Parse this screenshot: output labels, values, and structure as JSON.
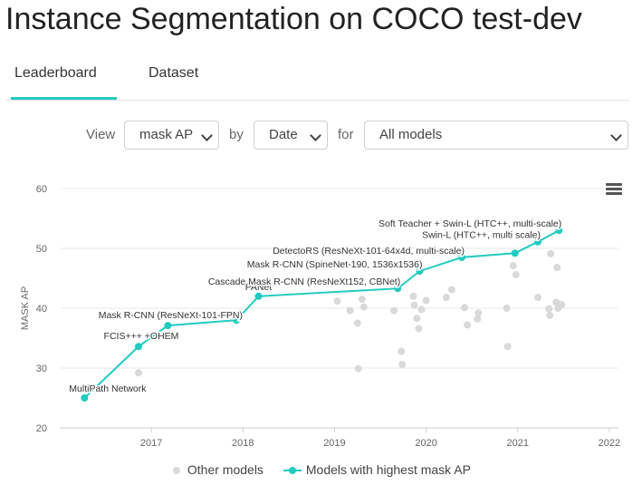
{
  "page": {
    "title": "Instance Segmentation on COCO test-dev"
  },
  "tabs": [
    {
      "label": "Leaderboard",
      "active": true
    },
    {
      "label": "Dataset",
      "active": false
    }
  ],
  "controls": {
    "view_label": "View",
    "view_value": "mask AP",
    "by_label": "by",
    "by_value": "Date",
    "for_label": "for",
    "for_value": "All models"
  },
  "chart_data": {
    "type": "scatter",
    "ylabel": "MASK AP",
    "xlabel": "",
    "ylim": [
      20,
      60
    ],
    "xlim": [
      2016.0,
      2022.1
    ],
    "yticks": [
      "20",
      "30",
      "40",
      "50",
      "60"
    ],
    "xticks": [
      "2017",
      "2018",
      "2019",
      "2020",
      "2021",
      "2022"
    ],
    "grid": true,
    "accent_color": "#21cbc0",
    "other_color": "#d9d9d9",
    "legend": {
      "position": "bottom",
      "other_label": "Other models",
      "best_label": "Models with highest mask AP"
    },
    "series": [
      {
        "name": "Models with highest mask AP",
        "points": [
          {
            "x": 2016.27,
            "y": 25.0,
            "label": "MultiPath Network"
          },
          {
            "x": 2016.86,
            "y": 33.6,
            "label": "FCIS+++ +OHEM"
          },
          {
            "x": 2017.18,
            "y": 37.1,
            "label": "Mask R-CNN (ResNeXt-101-FPN)"
          },
          {
            "x": 2017.93,
            "y": 38.0,
            "label": ""
          },
          {
            "x": 2018.17,
            "y": 42.0,
            "label": "PANet"
          },
          {
            "x": 2019.69,
            "y": 43.3,
            "label": "Cascade Mask R-CNN (ResNeXt152, CBNet)"
          },
          {
            "x": 2019.93,
            "y": 46.2,
            "label": "Mask R-CNN (SpineNet-190, 1536x1536)"
          },
          {
            "x": 2020.39,
            "y": 48.5,
            "label": "DetectoRS (ResNeXt-101-64x4d, multi-scale)"
          },
          {
            "x": 2020.97,
            "y": 49.2,
            "label": ""
          },
          {
            "x": 2021.22,
            "y": 51.1,
            "label": "Swin-L (HTC++, multi scale)"
          },
          {
            "x": 2021.45,
            "y": 53.0,
            "label": "Soft Teacher + Swin-L (HTC++, multi-scale)"
          }
        ]
      },
      {
        "name": "Other models",
        "points": [
          {
            "x": 2016.86,
            "y": 29.2
          },
          {
            "x": 2019.03,
            "y": 41.2
          },
          {
            "x": 2019.17,
            "y": 39.6
          },
          {
            "x": 2019.25,
            "y": 37.5
          },
          {
            "x": 2019.26,
            "y": 29.9
          },
          {
            "x": 2019.3,
            "y": 41.5
          },
          {
            "x": 2019.32,
            "y": 40.2
          },
          {
            "x": 2019.65,
            "y": 39.6
          },
          {
            "x": 2019.73,
            "y": 32.8
          },
          {
            "x": 2019.74,
            "y": 30.6
          },
          {
            "x": 2019.86,
            "y": 42.0
          },
          {
            "x": 2019.87,
            "y": 40.5
          },
          {
            "x": 2019.9,
            "y": 38.3
          },
          {
            "x": 2019.92,
            "y": 36.6
          },
          {
            "x": 2019.95,
            "y": 39.8
          },
          {
            "x": 2020.0,
            "y": 41.3
          },
          {
            "x": 2020.22,
            "y": 41.8
          },
          {
            "x": 2020.28,
            "y": 43.1
          },
          {
            "x": 2020.42,
            "y": 40.1
          },
          {
            "x": 2020.45,
            "y": 37.2
          },
          {
            "x": 2020.56,
            "y": 38.2
          },
          {
            "x": 2020.57,
            "y": 39.2
          },
          {
            "x": 2020.88,
            "y": 40.0
          },
          {
            "x": 2020.89,
            "y": 33.6
          },
          {
            "x": 2020.95,
            "y": 47.1
          },
          {
            "x": 2020.98,
            "y": 45.6
          },
          {
            "x": 2021.22,
            "y": 41.8
          },
          {
            "x": 2021.34,
            "y": 39.9
          },
          {
            "x": 2021.35,
            "y": 38.8
          },
          {
            "x": 2021.42,
            "y": 41.0
          },
          {
            "x": 2021.43,
            "y": 46.8
          },
          {
            "x": 2021.44,
            "y": 40.0
          },
          {
            "x": 2021.48,
            "y": 40.6
          },
          {
            "x": 2021.36,
            "y": 49.1
          }
        ]
      }
    ]
  }
}
